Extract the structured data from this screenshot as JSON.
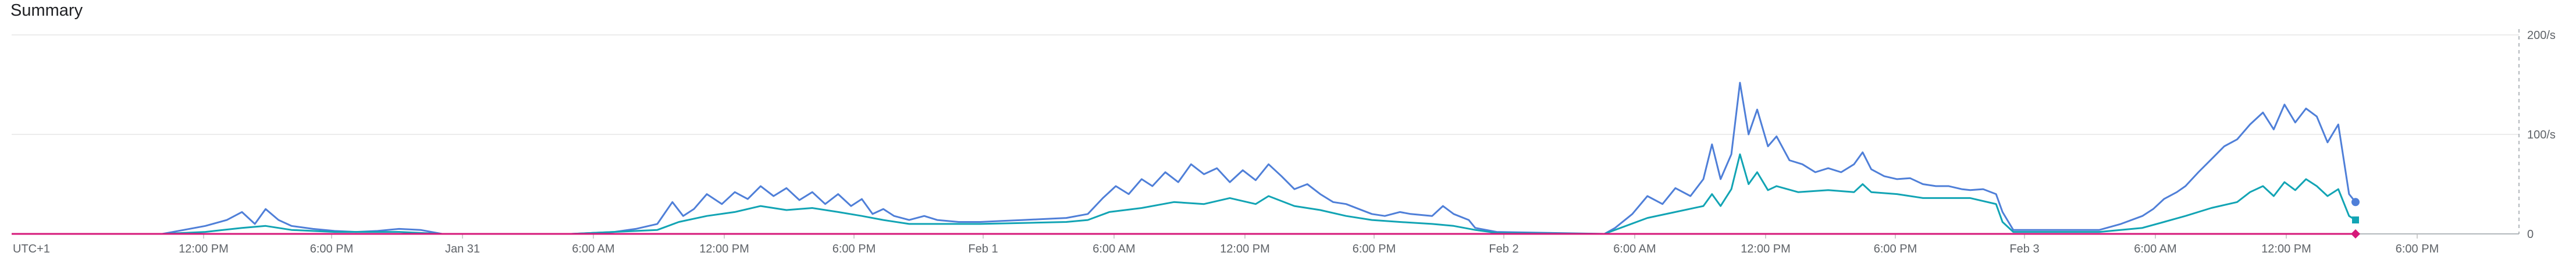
{
  "header": {
    "title": "Summary"
  },
  "chart_data": {
    "type": "line",
    "title": "Summary",
    "timezone_label": "UTC+1",
    "x_tick_labels": [
      "12:00 PM",
      "6:00 PM",
      "Jan 31",
      "6:00 AM",
      "12:00 PM",
      "6:00 PM",
      "Feb 1",
      "6:00 AM",
      "12:00 PM",
      "6:00 PM",
      "Feb 2",
      "6:00 AM",
      "12:00 PM",
      "6:00 PM",
      "Feb 3",
      "6:00 AM",
      "12:00 PM",
      "6:00 PM"
    ],
    "y_tick_labels": [
      "0",
      "100/s",
      "200/s"
    ],
    "ylim": [
      0,
      200
    ],
    "x_units": "hours since UTC+1 label",
    "xlim": [
      0,
      114
    ],
    "grid": true,
    "series": [
      {
        "color": "#4f7fd8",
        "marker": "circle",
        "points": [
          [
            0,
            0
          ],
          [
            7,
            0
          ],
          [
            8,
            4
          ],
          [
            9,
            8
          ],
          [
            10,
            14
          ],
          [
            10.7,
            22
          ],
          [
            11.3,
            10
          ],
          [
            11.8,
            25
          ],
          [
            12.4,
            14
          ],
          [
            13,
            8
          ],
          [
            14,
            5
          ],
          [
            15,
            3
          ],
          [
            16,
            2
          ],
          [
            17,
            3
          ],
          [
            18,
            5
          ],
          [
            19,
            4
          ],
          [
            19.5,
            2
          ],
          [
            20,
            0
          ],
          [
            26,
            0
          ],
          [
            28,
            2
          ],
          [
            29,
            5
          ],
          [
            30,
            10
          ],
          [
            30.7,
            32
          ],
          [
            31.2,
            18
          ],
          [
            31.7,
            25
          ],
          [
            32.3,
            40
          ],
          [
            33,
            30
          ],
          [
            33.6,
            42
          ],
          [
            34.2,
            35
          ],
          [
            34.8,
            48
          ],
          [
            35.4,
            38
          ],
          [
            36,
            46
          ],
          [
            36.6,
            34
          ],
          [
            37.2,
            42
          ],
          [
            37.8,
            30
          ],
          [
            38.4,
            40
          ],
          [
            39,
            28
          ],
          [
            39.5,
            35
          ],
          [
            40,
            20
          ],
          [
            40.5,
            25
          ],
          [
            41,
            18
          ],
          [
            41.7,
            14
          ],
          [
            42.4,
            18
          ],
          [
            43,
            14
          ],
          [
            44,
            12
          ],
          [
            45,
            12
          ],
          [
            46,
            13
          ],
          [
            47,
            14
          ],
          [
            48,
            15
          ],
          [
            49,
            16
          ],
          [
            50,
            20
          ],
          [
            50.7,
            36
          ],
          [
            51.3,
            48
          ],
          [
            51.9,
            40
          ],
          [
            52.5,
            55
          ],
          [
            53,
            48
          ],
          [
            53.6,
            62
          ],
          [
            54.2,
            52
          ],
          [
            54.8,
            70
          ],
          [
            55.4,
            60
          ],
          [
            56,
            66
          ],
          [
            56.6,
            52
          ],
          [
            57.2,
            64
          ],
          [
            57.8,
            54
          ],
          [
            58.4,
            70
          ],
          [
            59,
            58
          ],
          [
            59.6,
            45
          ],
          [
            60.2,
            50
          ],
          [
            60.8,
            40
          ],
          [
            61.4,
            32
          ],
          [
            62,
            30
          ],
          [
            62.6,
            25
          ],
          [
            63.2,
            20
          ],
          [
            63.8,
            18
          ],
          [
            64.5,
            22
          ],
          [
            65,
            20
          ],
          [
            66,
            18
          ],
          [
            66.5,
            28
          ],
          [
            67,
            20
          ],
          [
            67.7,
            14
          ],
          [
            68,
            6
          ],
          [
            69,
            2
          ],
          [
            74,
            0
          ],
          [
            74.5,
            6
          ],
          [
            75.3,
            20
          ],
          [
            76,
            38
          ],
          [
            76.7,
            30
          ],
          [
            77.3,
            46
          ],
          [
            78,
            38
          ],
          [
            78.6,
            55
          ],
          [
            79,
            90
          ],
          [
            79.4,
            55
          ],
          [
            79.9,
            80
          ],
          [
            80.3,
            152
          ],
          [
            80.7,
            100
          ],
          [
            81.1,
            125
          ],
          [
            81.6,
            88
          ],
          [
            82,
            98
          ],
          [
            82.6,
            74
          ],
          [
            83.2,
            70
          ],
          [
            83.8,
            62
          ],
          [
            84.4,
            66
          ],
          [
            85,
            62
          ],
          [
            85.6,
            70
          ],
          [
            86,
            82
          ],
          [
            86.4,
            65
          ],
          [
            87,
            58
          ],
          [
            87.6,
            55
          ],
          [
            88.2,
            56
          ],
          [
            88.8,
            50
          ],
          [
            89.4,
            48
          ],
          [
            90,
            48
          ],
          [
            90.6,
            45
          ],
          [
            91,
            44
          ],
          [
            91.6,
            45
          ],
          [
            92.2,
            40
          ],
          [
            92.5,
            22
          ],
          [
            93,
            4
          ],
          [
            97,
            4
          ],
          [
            98,
            10
          ],
          [
            99,
            18
          ],
          [
            99.5,
            25
          ],
          [
            100,
            35
          ],
          [
            100.6,
            42
          ],
          [
            101,
            48
          ],
          [
            101.6,
            62
          ],
          [
            102.2,
            75
          ],
          [
            102.8,
            88
          ],
          [
            103.4,
            95
          ],
          [
            104,
            110
          ],
          [
            104.6,
            122
          ],
          [
            105.1,
            105
          ],
          [
            105.6,
            130
          ],
          [
            106.1,
            112
          ],
          [
            106.6,
            126
          ],
          [
            107.1,
            118
          ],
          [
            107.6,
            92
          ],
          [
            108.1,
            110
          ],
          [
            108.6,
            40
          ],
          [
            108.9,
            32
          ]
        ]
      },
      {
        "color": "#12a4b4",
        "marker": "square",
        "points": [
          [
            0,
            0
          ],
          [
            7,
            0
          ],
          [
            9,
            2
          ],
          [
            10.7,
            6
          ],
          [
            11.8,
            8
          ],
          [
            13,
            4
          ],
          [
            15,
            2
          ],
          [
            18,
            2
          ],
          [
            20,
            0
          ],
          [
            26,
            0
          ],
          [
            30,
            4
          ],
          [
            31,
            12
          ],
          [
            32.3,
            18
          ],
          [
            33.6,
            22
          ],
          [
            34.8,
            28
          ],
          [
            36,
            24
          ],
          [
            37.2,
            26
          ],
          [
            38.4,
            22
          ],
          [
            39.5,
            18
          ],
          [
            40.5,
            14
          ],
          [
            41.7,
            10
          ],
          [
            43,
            10
          ],
          [
            45,
            10
          ],
          [
            47,
            11
          ],
          [
            49,
            12
          ],
          [
            50,
            14
          ],
          [
            51,
            22
          ],
          [
            52.5,
            26
          ],
          [
            54,
            32
          ],
          [
            55.4,
            30
          ],
          [
            56.6,
            36
          ],
          [
            57.8,
            30
          ],
          [
            58.4,
            38
          ],
          [
            59.6,
            28
          ],
          [
            60.8,
            24
          ],
          [
            62,
            18
          ],
          [
            63.2,
            14
          ],
          [
            64.5,
            12
          ],
          [
            66,
            10
          ],
          [
            67,
            8
          ],
          [
            68,
            4
          ],
          [
            69,
            1
          ],
          [
            74,
            0
          ],
          [
            75,
            8
          ],
          [
            76,
            16
          ],
          [
            77.3,
            22
          ],
          [
            78.6,
            28
          ],
          [
            79,
            40
          ],
          [
            79.4,
            28
          ],
          [
            79.9,
            45
          ],
          [
            80.3,
            80
          ],
          [
            80.7,
            50
          ],
          [
            81.1,
            62
          ],
          [
            81.6,
            44
          ],
          [
            82,
            48
          ],
          [
            83,
            42
          ],
          [
            84.4,
            44
          ],
          [
            85.6,
            42
          ],
          [
            86,
            50
          ],
          [
            86.4,
            42
          ],
          [
            87.6,
            40
          ],
          [
            88.8,
            36
          ],
          [
            90,
            36
          ],
          [
            91,
            36
          ],
          [
            92.2,
            30
          ],
          [
            92.5,
            12
          ],
          [
            93,
            2
          ],
          [
            97,
            2
          ],
          [
            99,
            6
          ],
          [
            100,
            12
          ],
          [
            101,
            18
          ],
          [
            102.2,
            26
          ],
          [
            103.4,
            32
          ],
          [
            104,
            42
          ],
          [
            104.6,
            48
          ],
          [
            105.1,
            38
          ],
          [
            105.6,
            52
          ],
          [
            106.1,
            44
          ],
          [
            106.6,
            55
          ],
          [
            107.1,
            48
          ],
          [
            107.6,
            38
          ],
          [
            108.1,
            45
          ],
          [
            108.6,
            18
          ],
          [
            108.9,
            14
          ]
        ]
      },
      {
        "color": "#d6197a",
        "marker": "diamond",
        "points": [
          [
            0,
            0
          ],
          [
            108.9,
            0
          ]
        ]
      }
    ]
  }
}
